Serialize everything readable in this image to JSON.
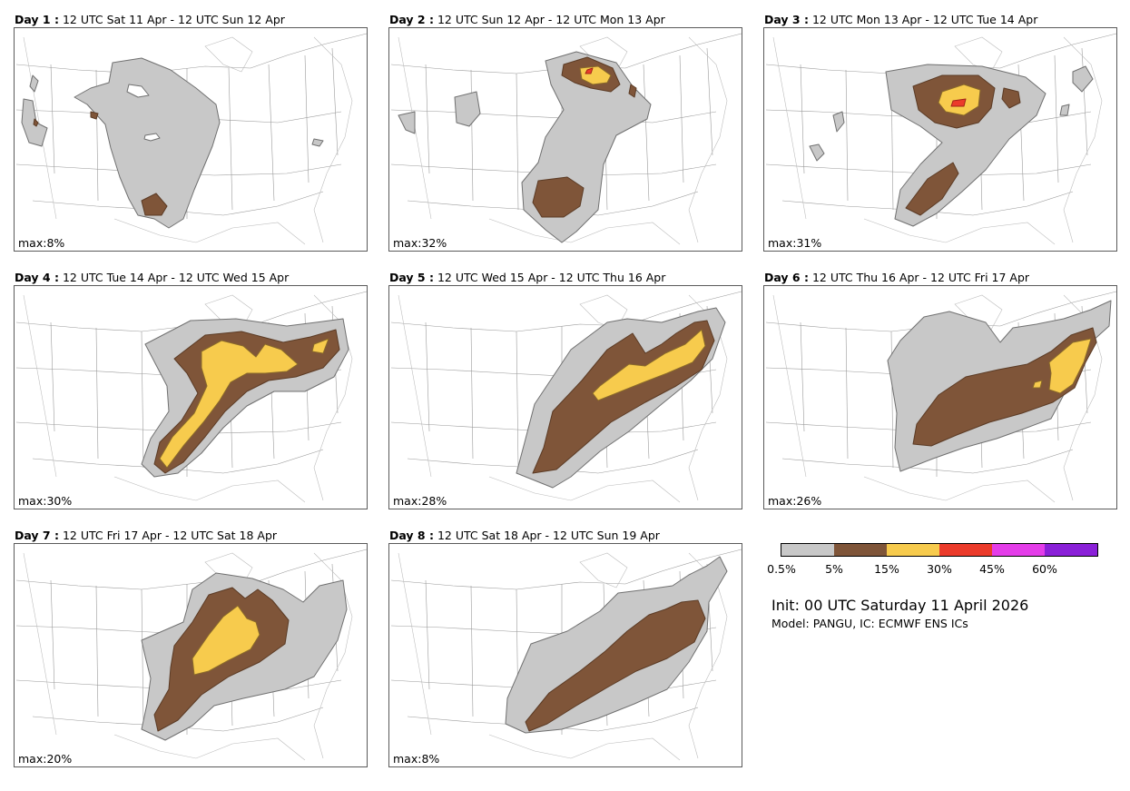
{
  "colors": {
    "c05": "#c8c8c8",
    "c5": "#7f5539",
    "c15": "#f7cb4d",
    "c30": "#ec3b2b",
    "c45": "#e43de9",
    "c60": "#8a20d8",
    "edge": "#707070",
    "state_lines": "#9a9a9a"
  },
  "panels": [
    {
      "day_label": "Day 1 :",
      "period": "12 UTC Sat 11 Apr - 12 UTC Sun 12 Apr",
      "max": "max:8%"
    },
    {
      "day_label": "Day 2 :",
      "period": "12 UTC Sun 12 Apr - 12 UTC Mon 13 Apr",
      "max": "max:32%"
    },
    {
      "day_label": "Day 3 :",
      "period": "12 UTC Mon 13 Apr - 12 UTC Tue 14 Apr",
      "max": "max:31%"
    },
    {
      "day_label": "Day 4 :",
      "period": "12 UTC Tue 14 Apr - 12 UTC Wed 15 Apr",
      "max": "max:30%"
    },
    {
      "day_label": "Day 5 :",
      "period": "12 UTC Wed 15 Apr - 12 UTC Thu 16 Apr",
      "max": "max:28%"
    },
    {
      "day_label": "Day 6 :",
      "period": "12 UTC Thu 16 Apr - 12 UTC Fri 17 Apr",
      "max": "max:26%"
    },
    {
      "day_label": "Day 7 :",
      "period": "12 UTC Fri 17 Apr - 12 UTC Sat 18 Apr",
      "max": "max:20%"
    },
    {
      "day_label": "Day 8 :",
      "period": "12 UTC Sat 18 Apr - 12 UTC Sun 19 Apr",
      "max": "max:8%"
    }
  ],
  "legend": {
    "ticks": [
      "0.5%",
      "5%",
      "15%",
      "30%",
      "45%",
      "60%"
    ]
  },
  "info": {
    "init": "Init: 00 UTC Saturday 11 April 2026",
    "model": "Model: PANGU, IC: ECMWF ENS ICs"
  }
}
